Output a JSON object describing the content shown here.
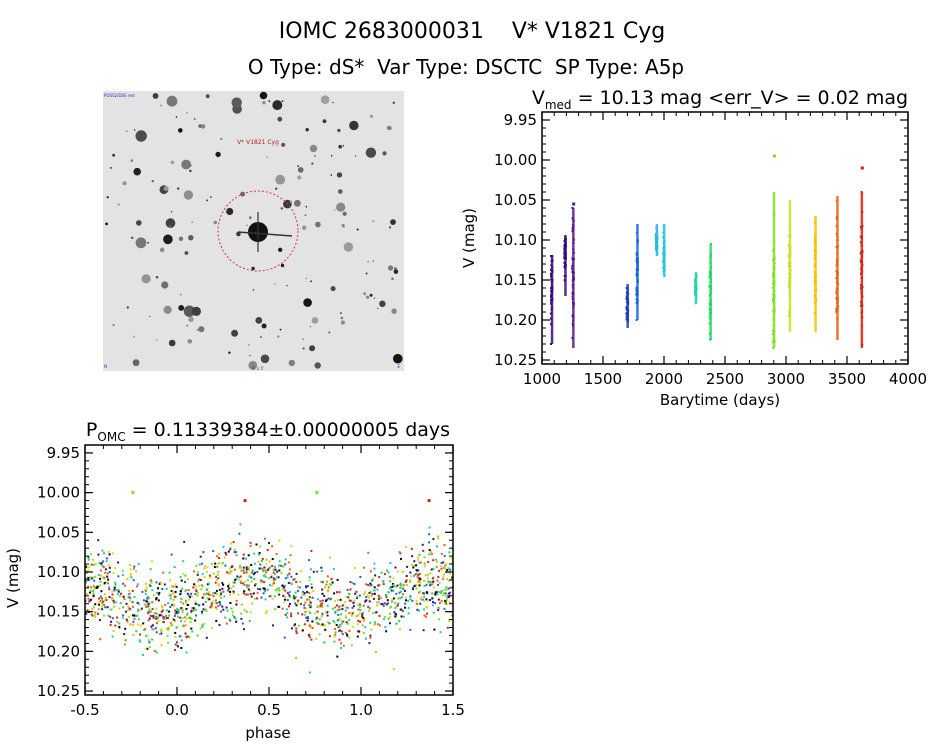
{
  "header": {
    "title_line1": "IOMC 2683000031    V* V1821 Cyg",
    "title_line2": "O Type: dS*  Var Type: DSCTC  SP Type: A5p"
  },
  "finder": {
    "label_target": "V* V1821 Cyg",
    "label_top_left": "POSS2/DSS red",
    "label_bottom_left": "N",
    "label_bottom_center": "5' x 5'",
    "label_bottom_right": "E"
  },
  "chart_data": [
    {
      "type": "scatter",
      "title_prefix": "V",
      "title_subscript": "med",
      "title_suffix": " = 10.13 mag <err_V> = 0.02 mag",
      "xlabel": "Barytime (days)",
      "ylabel": "V (mag)",
      "xlim": [
        1000,
        4000
      ],
      "ylim": [
        10.255,
        9.94
      ],
      "x_ticks": [
        "1000",
        "1500",
        "2000",
        "2500",
        "3000",
        "3500",
        "4000"
      ],
      "y_ticks": [
        "9.95",
        "10.00",
        "10.05",
        "10.10",
        "10.15",
        "10.20",
        "10.25"
      ],
      "groups": [
        {
          "x": 1080,
          "center": 10.16,
          "min": 10.12,
          "max": 10.23,
          "color": "#3a0d7a"
        },
        {
          "x": 1190,
          "center": 10.12,
          "min": 10.095,
          "max": 10.17,
          "color": "#3a0d7a"
        },
        {
          "x": 1255,
          "center": 10.15,
          "min": 10.06,
          "max": 10.235,
          "color": "#5a1888"
        },
        {
          "x": 1700,
          "center": 10.18,
          "min": 10.155,
          "max": 10.21,
          "color": "#1b3fb0"
        },
        {
          "x": 1780,
          "center": 10.14,
          "min": 10.08,
          "max": 10.2,
          "color": "#1565d8"
        },
        {
          "x": 1940,
          "center": 10.1,
          "min": 10.08,
          "max": 10.12,
          "color": "#28b8e0"
        },
        {
          "x": 2000,
          "center": 10.12,
          "min": 10.08,
          "max": 10.145,
          "color": "#22c8e0"
        },
        {
          "x": 2260,
          "center": 10.16,
          "min": 10.14,
          "max": 10.18,
          "color": "#20d8a8"
        },
        {
          "x": 2380,
          "center": 10.16,
          "min": 10.105,
          "max": 10.225,
          "color": "#20d860"
        },
        {
          "x": 2900,
          "center": 10.15,
          "min": 10.04,
          "max": 10.235,
          "color": "#7ee022"
        },
        {
          "x": 3030,
          "center": 10.14,
          "min": 10.05,
          "max": 10.215,
          "color": "#c8e020"
        },
        {
          "x": 3240,
          "center": 10.14,
          "min": 10.07,
          "max": 10.215,
          "color": "#f8c000"
        },
        {
          "x": 3420,
          "center": 10.14,
          "min": 10.045,
          "max": 10.225,
          "color": "#e86010"
        },
        {
          "x": 3620,
          "center": 10.14,
          "min": 10.04,
          "max": 10.235,
          "color": "#d82010"
        }
      ],
      "outliers": [
        {
          "x": 2905,
          "y": 9.995,
          "color": "#7ee022"
        },
        {
          "x": 3625,
          "y": 10.01,
          "color": "#d82010"
        },
        {
          "x": 1260,
          "y": 10.055,
          "color": "#5a1888"
        }
      ]
    },
    {
      "type": "scatter",
      "title_prefix": "P",
      "title_subscript": "OMC",
      "title_suffix": " = 0.11339384±0.00000005 days",
      "xlabel": "phase",
      "ylabel": "V (mag)",
      "xlim": [
        -0.5,
        1.5
      ],
      "ylim": [
        10.255,
        9.94
      ],
      "x_ticks": [
        "-0.5",
        "0.0",
        "0.5",
        "1.0",
        "1.5"
      ],
      "y_ticks": [
        "9.95",
        "10.00",
        "10.05",
        "10.10",
        "10.15",
        "10.20",
        "10.25"
      ],
      "mean_mag": 10.13,
      "amplitude": 0.02,
      "scatter": 0.025,
      "colors": [
        "#000000",
        "#3a0d7a",
        "#1565d8",
        "#28b8e0",
        "#20d860",
        "#7ee022",
        "#c8e020",
        "#f8c000",
        "#e86010",
        "#d82010"
      ],
      "outliers": [
        {
          "x": -0.24,
          "y": 10.0,
          "color": "#7ee022"
        },
        {
          "x": 0.76,
          "y": 10.0,
          "color": "#7ee022"
        },
        {
          "x": 0.37,
          "y": 10.01,
          "color": "#d82010"
        },
        {
          "x": 1.37,
          "y": 10.01,
          "color": "#d82010"
        }
      ]
    }
  ]
}
